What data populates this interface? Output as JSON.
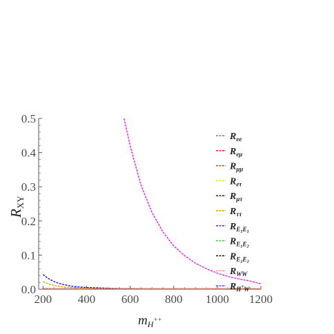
{
  "chart_data": {
    "type": "line",
    "xlabel": {
      "main": "m",
      "sub": "H",
      "sup": "++"
    },
    "ylabel": {
      "main": "R",
      "sub": "XY"
    },
    "xlim": [
      180,
      1200
    ],
    "ylim": [
      0,
      0.5
    ],
    "xticks": [
      200,
      400,
      600,
      800,
      1000,
      1200
    ],
    "yticks": [
      0.0,
      0.1,
      0.2,
      0.3,
      0.4,
      0.5
    ],
    "xtick_labels": [
      "200",
      "400",
      "600",
      "800",
      "1000",
      "1200"
    ],
    "ytick_labels": [
      "0.0",
      "0.1",
      "0.2",
      "0.3",
      "0.4",
      "0.5"
    ],
    "legend_position": "right",
    "series": [
      {
        "name": "R_ee",
        "label_main": "R",
        "label_sub": "ee",
        "color": "#808080",
        "x": [
          200,
          400,
          600,
          800,
          1000,
          1200
        ],
        "y": [
          0.002,
          0.001,
          0.001,
          0.001,
          0.001,
          0.001
        ]
      },
      {
        "name": "R_eμ",
        "label_main": "R",
        "label_sub": "eμ",
        "color": "#ff0000",
        "x": [
          200,
          400,
          600,
          800,
          1000,
          1200
        ],
        "y": [
          0.001,
          0.001,
          0.001,
          0.001,
          0.001,
          0.001
        ]
      },
      {
        "name": "R_μμ",
        "label_main": "R",
        "label_sub": "μμ",
        "color": "#8b4513",
        "x": [
          200,
          400,
          600,
          800,
          1000,
          1200
        ],
        "y": [
          0.002,
          0.001,
          0.001,
          0.001,
          0.001,
          0.001
        ]
      },
      {
        "name": "R_eτ",
        "label_main": "R",
        "label_sub": "eτ",
        "color": "#ffd700",
        "x": [
          200,
          400,
          600,
          800,
          1000,
          1200
        ],
        "y": [
          0.001,
          0.001,
          0.001,
          0.001,
          0.001,
          0.001
        ]
      },
      {
        "name": "R_μτ",
        "label_main": "R",
        "label_sub": "μτ",
        "color": "#0000cd",
        "x": [
          200,
          220,
          240,
          260,
          280,
          300,
          330,
          360,
          400,
          450,
          500,
          550,
          600,
          700,
          800,
          1000,
          1200
        ],
        "y": [
          0.043,
          0.033,
          0.026,
          0.02,
          0.016,
          0.013,
          0.009,
          0.007,
          0.005,
          0.004,
          0.003,
          0.002,
          0.002,
          0.001,
          0.001,
          0.001,
          0.001
        ]
      },
      {
        "name": "R_ττ",
        "label_main": "R",
        "label_sub": "ττ",
        "color": "#ff8c00",
        "x": [
          200,
          220,
          240,
          260,
          280,
          300,
          330,
          360,
          400,
          450,
          500,
          600,
          800,
          1000,
          1200
        ],
        "y": [
          0.022,
          0.017,
          0.013,
          0.01,
          0.008,
          0.006,
          0.005,
          0.004,
          0.003,
          0.002,
          0.002,
          0.001,
          0.001,
          0.001,
          0.001
        ]
      },
      {
        "name": "R_E1E1",
        "label_main": "R",
        "label_sub": "E",
        "label_sub1": "1",
        "label_sub2": "E",
        "label_sub3": "1",
        "color": "#800080",
        "x": [
          200,
          400,
          600,
          800,
          1000,
          1200
        ],
        "y": [
          0.001,
          0.001,
          0.001,
          0.001,
          0.001,
          0.001
        ]
      },
      {
        "name": "R_E1E2",
        "label_main": "R",
        "label_sub": "E",
        "label_sub1": "1",
        "label_sub2": "E",
        "label_sub3": "2",
        "color": "#32cd32",
        "x": [
          200,
          400,
          600,
          800,
          1000,
          1200
        ],
        "y": [
          0.001,
          0.001,
          0.001,
          0.001,
          0.001,
          0.001
        ]
      },
      {
        "name": "R_E2E2",
        "label_main": "R",
        "label_sub": "E",
        "label_sub1": "2",
        "label_sub2": "E",
        "label_sub3": "2",
        "color": "#000000",
        "x": [
          200,
          400,
          600,
          800,
          1000,
          1200
        ],
        "y": [
          0.001,
          0.001,
          0.001,
          0.001,
          0.001,
          0.001
        ]
      },
      {
        "name": "R_WW",
        "label_main": "R",
        "label_sub": "WW",
        "color": "#ff8080",
        "x": [
          200,
          400,
          600,
          800,
          1000,
          1200
        ],
        "y": [
          0.001,
          0.001,
          0.001,
          0.001,
          0.001,
          0.001
        ]
      },
      {
        "name": "R_H+W",
        "label_main": "R",
        "label_sub": "H",
        "label_subsup": "+",
        "label_sub_after": "W",
        "color": "#ff00ff",
        "x": [
          572,
          600,
          650,
          700,
          750,
          800,
          850,
          900,
          950,
          1000,
          1050,
          1100,
          1150,
          1200
        ],
        "y": [
          0.5,
          0.42,
          0.304,
          0.225,
          0.168,
          0.127,
          0.098,
          0.076,
          0.06,
          0.047,
          0.037,
          0.03,
          0.024,
          0.016
        ]
      }
    ]
  }
}
